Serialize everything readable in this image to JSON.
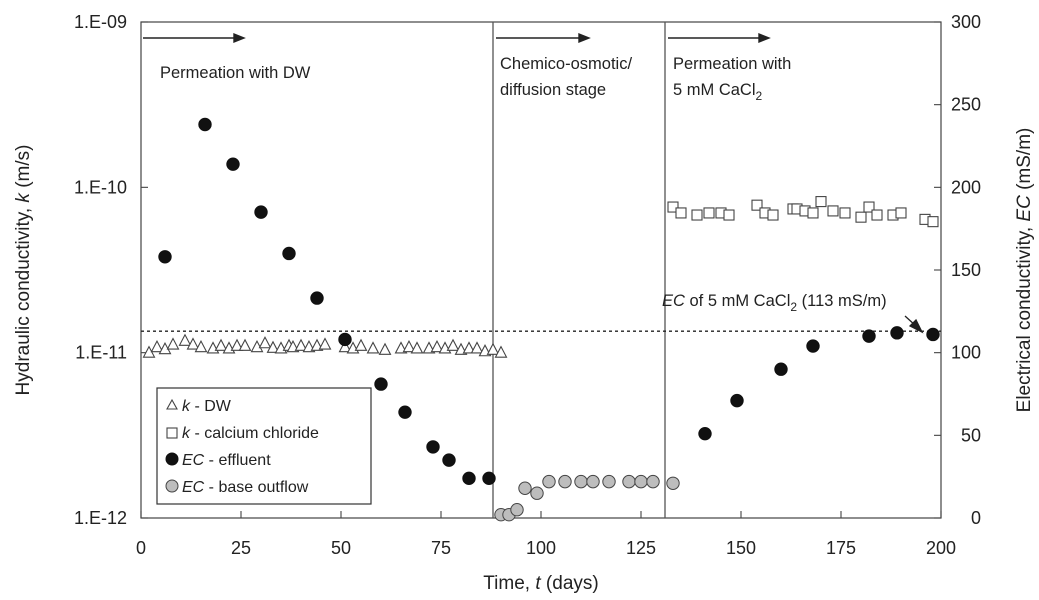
{
  "chart_data": {
    "type": "scatter",
    "xlabel": {
      "pre": "Time, ",
      "sym": "t",
      "post": " (days)"
    },
    "ylabel_left": {
      "pre": "Hydraulic conductivity, ",
      "sym": "k",
      "post": " (m/s)"
    },
    "ylabel_right": {
      "pre": "Electrical conductivity, ",
      "sym": "EC",
      "post": " (mS/m)"
    },
    "x_range": [
      0,
      200
    ],
    "x_ticks": [
      "0",
      "25",
      "50",
      "75",
      "100",
      "125",
      "150",
      "175",
      "200"
    ],
    "x_tick_values": [
      0,
      25,
      50,
      75,
      100,
      125,
      150,
      175,
      200
    ],
    "yleft_range": [
      1e-12,
      1e-09
    ],
    "yleft_scale": "log",
    "yleft_ticks": [
      "1.E-12",
      "1.E-11",
      "1.E-10",
      "1.E-09"
    ],
    "yleft_tick_values": [
      1e-12,
      1e-11,
      1e-10,
      1e-09
    ],
    "yright_range": [
      0,
      300
    ],
    "yright_ticks": [
      "0",
      "50",
      "100",
      "150",
      "200",
      "250",
      "300"
    ],
    "yright_tick_values": [
      0,
      50,
      100,
      150,
      200,
      250,
      300
    ],
    "stage_boundaries": [
      88,
      131
    ],
    "reference_line": {
      "axis": "right",
      "value": 113
    },
    "annotations": {
      "stage1": "Permeation with DW",
      "stage2_line1": "Chemico-osmotic/",
      "stage2_line2": "diffusion stage",
      "stage3_line1": "Permeation with",
      "stage3_line2_pre": "5 mM CaCl",
      "stage3_line2_sub": "2",
      "ref_sym": "EC",
      "ref_mid": " of 5 mM CaCl",
      "ref_sub": "2",
      "ref_post": " (113 mS/m)"
    },
    "legend": [
      {
        "sym": "k",
        "text": " - DW",
        "marker": "triangle-open"
      },
      {
        "sym": "k",
        "text": " - calcium chloride",
        "marker": "square-open"
      },
      {
        "sym": "EC",
        "text": " - effluent",
        "marker": "circle-black"
      },
      {
        "sym": "EC",
        "text": " - base outflow",
        "marker": "circle-gray"
      }
    ],
    "series": [
      {
        "name": "k - DW",
        "axis": "left",
        "marker": "triangle-open",
        "x": [
          2,
          4,
          6,
          8,
          11,
          13,
          15,
          18,
          20,
          22,
          24,
          26,
          29,
          31,
          33,
          35,
          37,
          38,
          40,
          42,
          44,
          46,
          51,
          53,
          55,
          58,
          61,
          65,
          67,
          69,
          72,
          74,
          76,
          78,
          80,
          82,
          84,
          86,
          88,
          90
        ],
        "y": [
          1e-11,
          1.08e-11,
          1.05e-11,
          1.12e-11,
          1.18e-11,
          1.12e-11,
          1.08e-11,
          1.06e-11,
          1.1e-11,
          1.06e-11,
          1.1e-11,
          1.1e-11,
          1.08e-11,
          1.14e-11,
          1.07e-11,
          1.06e-11,
          1.1e-11,
          1.08e-11,
          1.1e-11,
          1.08e-11,
          1.1e-11,
          1.12e-11,
          1.08e-11,
          1.06e-11,
          1.1e-11,
          1.06e-11,
          1.04e-11,
          1.06e-11,
          1.08e-11,
          1.06e-11,
          1.06e-11,
          1.08e-11,
          1.06e-11,
          1.1e-11,
          1.04e-11,
          1.06e-11,
          1.06e-11,
          1.02e-11,
          1.04e-11,
          1e-11
        ]
      },
      {
        "name": "k - calcium chloride",
        "axis": "left",
        "marker": "square-open",
        "x": [
          133,
          135,
          139,
          142,
          145,
          147,
          154,
          156,
          158,
          163,
          164,
          166,
          168,
          170,
          173,
          176,
          180,
          182,
          184,
          188,
          190,
          196,
          198
        ],
        "y": [
          7.6e-11,
          7e-11,
          6.8e-11,
          7e-11,
          7e-11,
          6.8e-11,
          7.8e-11,
          7e-11,
          6.8e-11,
          7.4e-11,
          7.4e-11,
          7.2e-11,
          7e-11,
          8.2e-11,
          7.2e-11,
          7e-11,
          6.6e-11,
          7.6e-11,
          6.8e-11,
          6.8e-11,
          7e-11,
          6.4e-11,
          6.2e-11
        ]
      },
      {
        "name": "EC - effluent",
        "axis": "right",
        "marker": "circle-black",
        "x": [
          6,
          16,
          23,
          30,
          37,
          44,
          51,
          60,
          66,
          73,
          77,
          82,
          87,
          141,
          149,
          160,
          168,
          182,
          189,
          198
        ],
        "y": [
          158,
          238,
          214,
          185,
          160,
          133,
          108,
          81,
          64,
          43,
          35,
          24,
          24,
          51,
          71,
          90,
          104,
          110,
          112,
          111
        ]
      },
      {
        "name": "EC - base outflow",
        "axis": "right",
        "marker": "circle-gray",
        "x": [
          90,
          92,
          94,
          96,
          99,
          102,
          106,
          110,
          113,
          117,
          122,
          125,
          128,
          133
        ],
        "y": [
          2,
          2,
          5,
          18,
          15,
          22,
          22,
          22,
          22,
          22,
          22,
          22,
          22,
          21
        ]
      }
    ]
  }
}
